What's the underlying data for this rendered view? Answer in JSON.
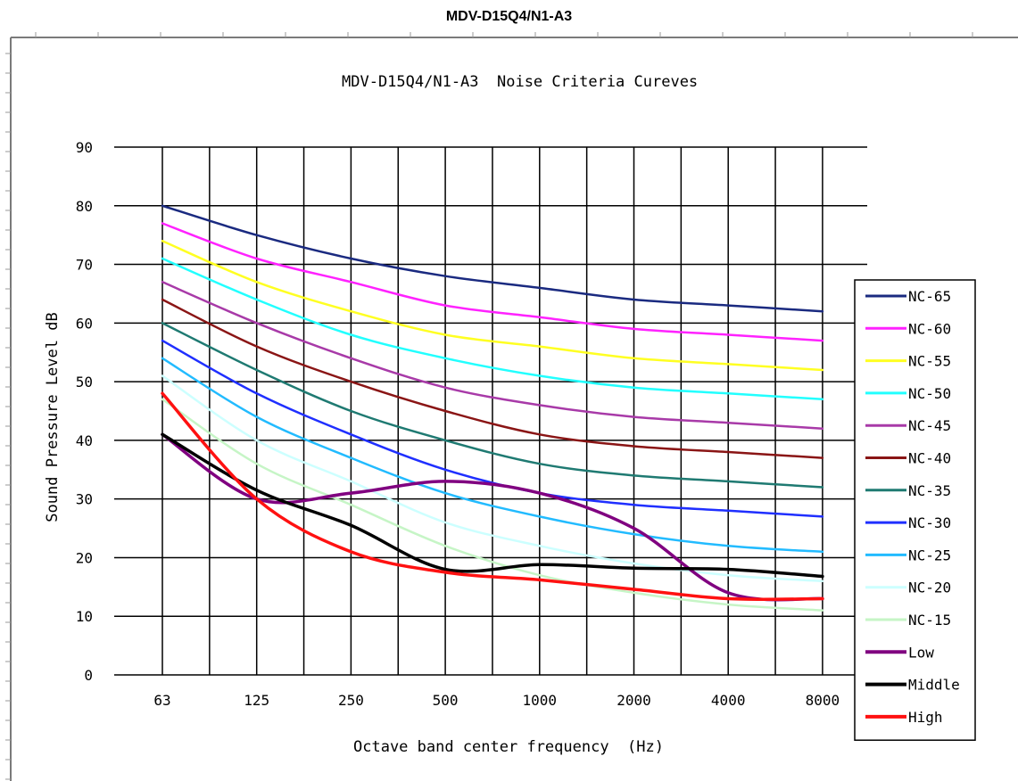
{
  "page_title": "MDV-D15Q4/N1-A3",
  "chart_data": {
    "type": "line",
    "title": "MDV-D15Q4/N1-A3  Noise Criteria Cureves",
    "xlabel": "Octave band center frequency  (Hz)",
    "ylabel": "Sound Pressure Level dB",
    "categories": [
      "63",
      "125",
      "250",
      "500",
      "1000",
      "2000",
      "4000",
      "8000"
    ],
    "ylim": [
      0,
      90
    ],
    "yticks": [
      0,
      10,
      20,
      30,
      40,
      50,
      60,
      70,
      80,
      90
    ],
    "grid": true,
    "legend_position": "right",
    "series": [
      {
        "name": "NC-65",
        "color": "#1a2a80",
        "width": 2.5,
        "values": [
          80,
          75,
          71,
          68,
          66,
          64,
          63,
          62
        ]
      },
      {
        "name": "NC-60",
        "color": "#ff22ff",
        "width": 2.5,
        "values": [
          77,
          71,
          67,
          63,
          61,
          59,
          58,
          57
        ]
      },
      {
        "name": "NC-55",
        "color": "#ffff22",
        "width": 2.5,
        "values": [
          74,
          67,
          62,
          58,
          56,
          54,
          53,
          52
        ]
      },
      {
        "name": "NC-50",
        "color": "#22ffff",
        "width": 2.5,
        "values": [
          71,
          64,
          58,
          54,
          51,
          49,
          48,
          47
        ]
      },
      {
        "name": "NC-45",
        "color": "#a83aa8",
        "width": 2.5,
        "values": [
          67,
          60,
          54,
          49,
          46,
          44,
          43,
          42
        ]
      },
      {
        "name": "NC-40",
        "color": "#8a1515",
        "width": 2.5,
        "values": [
          64,
          56,
          50,
          45,
          41,
          39,
          38,
          37
        ]
      },
      {
        "name": "NC-35",
        "color": "#1f7a72",
        "width": 2.5,
        "values": [
          60,
          52,
          45,
          40,
          36,
          34,
          33,
          32
        ]
      },
      {
        "name": "NC-30",
        "color": "#1f2fff",
        "width": 2.5,
        "values": [
          57,
          48,
          41,
          35,
          31,
          29,
          28,
          27
        ]
      },
      {
        "name": "NC-25",
        "color": "#22bbff",
        "width": 2.5,
        "values": [
          54,
          44,
          37,
          31,
          27,
          24,
          22,
          21
        ]
      },
      {
        "name": "NC-20",
        "color": "#ccffff",
        "width": 2.5,
        "values": [
          51,
          40,
          33,
          26,
          22,
          19,
          17,
          16
        ]
      },
      {
        "name": "NC-15",
        "color": "#c6f5c6",
        "width": 2.5,
        "values": [
          47,
          36,
          29,
          22,
          17,
          14,
          12,
          11
        ]
      },
      {
        "name": "Low",
        "color": "#800080",
        "width": 3.5,
        "values": [
          41,
          30,
          31,
          33,
          31,
          25,
          14,
          13
        ]
      },
      {
        "name": "Middle",
        "color": "#000000",
        "width": 3.5,
        "values": [
          41,
          31.5,
          25.5,
          18,
          18.8,
          18.2,
          18,
          16.8
        ]
      },
      {
        "name": "High",
        "color": "#ff1111",
        "width": 3.5,
        "values": [
          48,
          30,
          21,
          17.5,
          16.2,
          14.6,
          13,
          13
        ]
      }
    ]
  }
}
